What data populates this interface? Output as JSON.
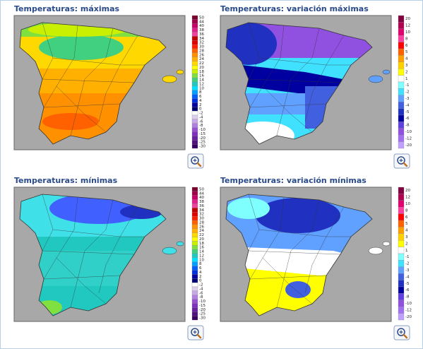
{
  "panels": [
    {
      "title": "Temperaturas: máximas",
      "legend": [
        {
          "label": "50",
          "color": "#7a0030"
        },
        {
          "label": "44",
          "color": "#a0004a"
        },
        {
          "label": "40",
          "color": "#c8006a"
        },
        {
          "label": "38",
          "color": "#e0208a"
        },
        {
          "label": "36",
          "color": "#f040a0"
        },
        {
          "label": "34",
          "color": "#c00000"
        },
        {
          "label": "32",
          "color": "#e00000"
        },
        {
          "label": "30",
          "color": "#ff2000"
        },
        {
          "label": "28",
          "color": "#ff6000"
        },
        {
          "label": "26",
          "color": "#ff9000"
        },
        {
          "label": "24",
          "color": "#ffb000"
        },
        {
          "label": "22",
          "color": "#ffd800"
        },
        {
          "label": "20",
          "color": "#ffff00"
        },
        {
          "label": "18",
          "color": "#c8f000"
        },
        {
          "label": "16",
          "color": "#80e040"
        },
        {
          "label": "14",
          "color": "#40d080"
        },
        {
          "label": "12",
          "color": "#20c8c0"
        },
        {
          "label": "10",
          "color": "#00e0ff"
        },
        {
          "label": "8",
          "color": "#00a0ff"
        },
        {
          "label": "6",
          "color": "#0060ff"
        },
        {
          "label": "4",
          "color": "#0030e0"
        },
        {
          "label": "2",
          "color": "#0000a0"
        },
        {
          "label": "0",
          "color": "#000070"
        },
        {
          "label": "-2",
          "color": "#ffffff"
        },
        {
          "label": "-4",
          "color": "#e0d0f0"
        },
        {
          "label": "-6",
          "color": "#c8a8e8"
        },
        {
          "label": "-8",
          "color": "#b080e0"
        },
        {
          "label": "-10",
          "color": "#9850d0"
        },
        {
          "label": "-15",
          "color": "#8030c0"
        },
        {
          "label": "-20",
          "color": "#6820a0"
        },
        {
          "label": "-25",
          "color": "#501080"
        },
        {
          "label": "-30",
          "color": "#380060"
        }
      ]
    },
    {
      "title": "Temperaturas: variación máximas",
      "legend": [
        {
          "label": "20",
          "color": "#800040"
        },
        {
          "label": "12",
          "color": "#b00050"
        },
        {
          "label": "10",
          "color": "#e00070"
        },
        {
          "label": "8",
          "color": "#ff40a0"
        },
        {
          "label": "6",
          "color": "#ff0000"
        },
        {
          "label": "5",
          "color": "#ff6000"
        },
        {
          "label": "4",
          "color": "#ffa000"
        },
        {
          "label": "3",
          "color": "#ffd000"
        },
        {
          "label": "2",
          "color": "#ffff00"
        },
        {
          "label": "1",
          "color": "#ffffff"
        },
        {
          "label": "-1",
          "color": "#80ffff"
        },
        {
          "label": "-2",
          "color": "#40e0ff"
        },
        {
          "label": "-3",
          "color": "#60a0ff"
        },
        {
          "label": "-4",
          "color": "#4060e0"
        },
        {
          "label": "-5",
          "color": "#2030c0"
        },
        {
          "label": "-6",
          "color": "#0000a0"
        },
        {
          "label": "-8",
          "color": "#6040e0"
        },
        {
          "label": "-10",
          "color": "#9050e0"
        },
        {
          "label": "-12",
          "color": "#a070f0"
        },
        {
          "label": "-20",
          "color": "#c0a0ff"
        }
      ]
    },
    {
      "title": "Temperaturas: mínimas",
      "legend": [
        {
          "label": "50",
          "color": "#7a0030"
        },
        {
          "label": "44",
          "color": "#a0004a"
        },
        {
          "label": "40",
          "color": "#c8006a"
        },
        {
          "label": "38",
          "color": "#e0208a"
        },
        {
          "label": "36",
          "color": "#f040a0"
        },
        {
          "label": "34",
          "color": "#c00000"
        },
        {
          "label": "32",
          "color": "#e00000"
        },
        {
          "label": "30",
          "color": "#ff2000"
        },
        {
          "label": "28",
          "color": "#ff6000"
        },
        {
          "label": "26",
          "color": "#ff9000"
        },
        {
          "label": "24",
          "color": "#ffb000"
        },
        {
          "label": "22",
          "color": "#ffd800"
        },
        {
          "label": "20",
          "color": "#ffff00"
        },
        {
          "label": "18",
          "color": "#c8f000"
        },
        {
          "label": "16",
          "color": "#80e040"
        },
        {
          "label": "14",
          "color": "#40d080"
        },
        {
          "label": "12",
          "color": "#20c8c0"
        },
        {
          "label": "10",
          "color": "#00e0ff"
        },
        {
          "label": "8",
          "color": "#00a0ff"
        },
        {
          "label": "6",
          "color": "#0060ff"
        },
        {
          "label": "4",
          "color": "#0030e0"
        },
        {
          "label": "2",
          "color": "#0000a0"
        },
        {
          "label": "0",
          "color": "#000070"
        },
        {
          "label": "-2",
          "color": "#ffffff"
        },
        {
          "label": "-4",
          "color": "#e0d0f0"
        },
        {
          "label": "-6",
          "color": "#c8a8e8"
        },
        {
          "label": "-8",
          "color": "#b080e0"
        },
        {
          "label": "-10",
          "color": "#9850d0"
        },
        {
          "label": "-15",
          "color": "#8030c0"
        },
        {
          "label": "-20",
          "color": "#6820a0"
        },
        {
          "label": "-25",
          "color": "#501080"
        },
        {
          "label": "-30",
          "color": "#380060"
        }
      ]
    },
    {
      "title": "Temperaturas: variación mínimas",
      "legend": [
        {
          "label": "20",
          "color": "#800040"
        },
        {
          "label": "12",
          "color": "#b00050"
        },
        {
          "label": "10",
          "color": "#e00070"
        },
        {
          "label": "8",
          "color": "#ff40a0"
        },
        {
          "label": "6",
          "color": "#ff0000"
        },
        {
          "label": "5",
          "color": "#ff6000"
        },
        {
          "label": "4",
          "color": "#ffa000"
        },
        {
          "label": "3",
          "color": "#ffd000"
        },
        {
          "label": "2",
          "color": "#ffff00"
        },
        {
          "label": "1",
          "color": "#ffffff"
        },
        {
          "label": "-1",
          "color": "#80ffff"
        },
        {
          "label": "-2",
          "color": "#40e0ff"
        },
        {
          "label": "-3",
          "color": "#60a0ff"
        },
        {
          "label": "-4",
          "color": "#4060e0"
        },
        {
          "label": "-5",
          "color": "#2030c0"
        },
        {
          "label": "-6",
          "color": "#0000a0"
        },
        {
          "label": "-8",
          "color": "#6040e0"
        },
        {
          "label": "-10",
          "color": "#9050e0"
        },
        {
          "label": "-12",
          "color": "#a070f0"
        },
        {
          "label": "-20",
          "color": "#c0a0ff"
        }
      ]
    }
  ]
}
